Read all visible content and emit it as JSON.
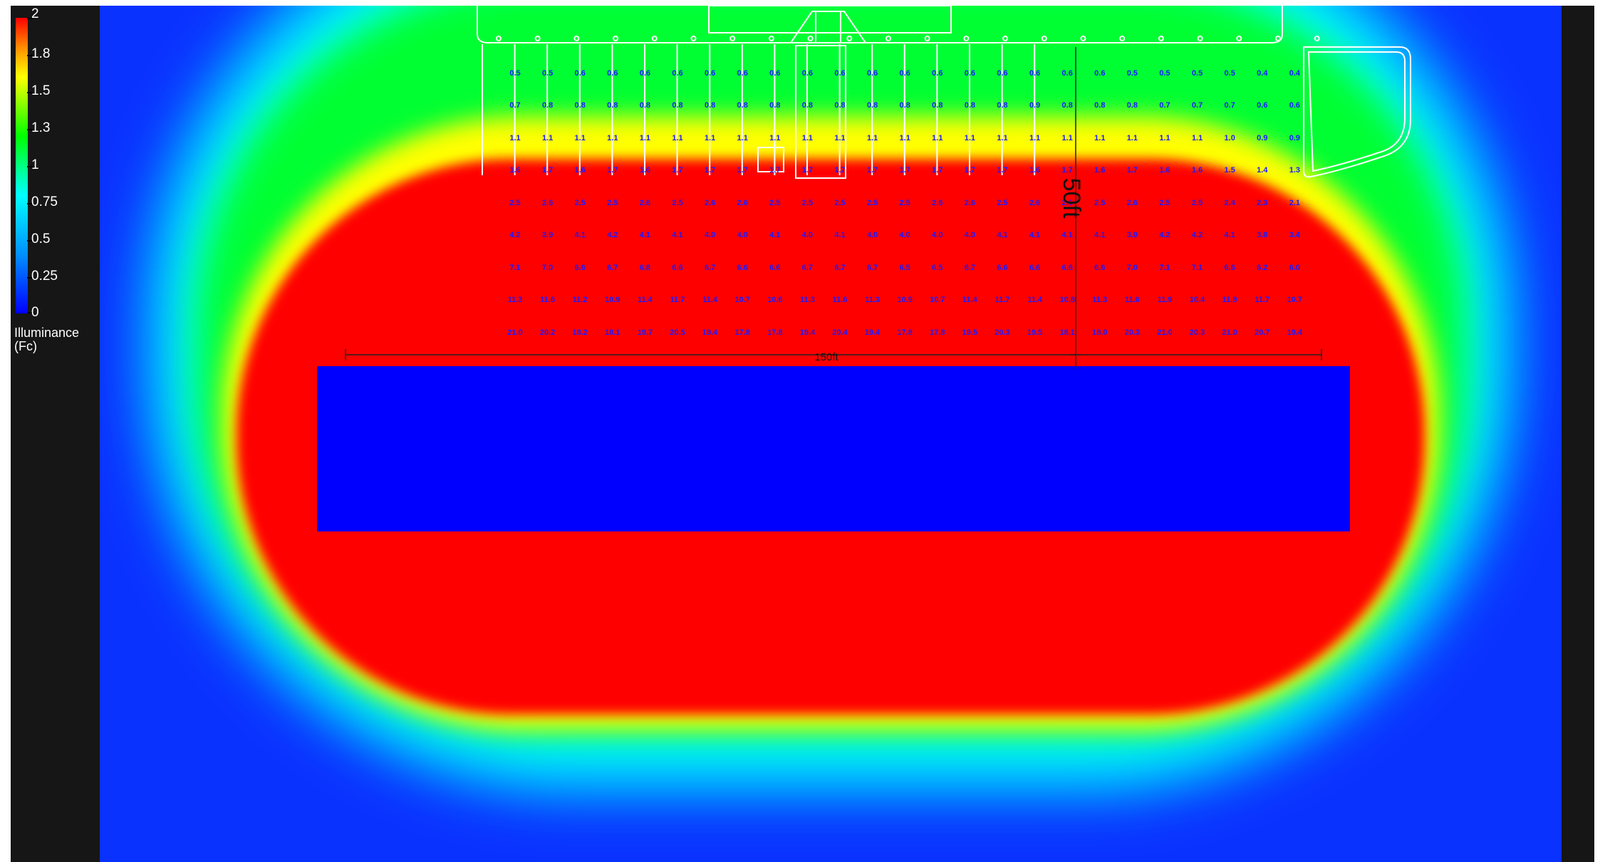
{
  "legend": {
    "ticks": [
      "2",
      "1.8",
      "1.5",
      "1.3",
      "1",
      "0.75",
      "0.5",
      "0.25",
      "0"
    ],
    "title_line1": "Illuminance",
    "title_line2": "(Fc)"
  },
  "dimensions": {
    "width_label": "150ft",
    "depth_label": "50ft"
  },
  "colors": {
    "red": "#ff0000",
    "orange": "#ff8c00",
    "yellow": "#ffff00",
    "green": "#00ff00",
    "cyan": "#00ffff",
    "blue": "#0000ff",
    "grid_values": "#1a1aff",
    "outline": "#ffffff"
  },
  "grid_values": [
    [
      "0.5",
      "0.5",
      "0.6",
      "0.6",
      "0.6",
      "0.6",
      "0.6",
      "0.6",
      "0.6",
      "0.6",
      "0.6",
      "0.6",
      "0.6",
      "0.6",
      "0.6",
      "0.6",
      "0.6",
      "0.6",
      "0.6",
      "0.5",
      "0.5",
      "0.5",
      "0.5",
      "0.4",
      "0.4"
    ],
    [
      "0.7",
      "0.8",
      "0.8",
      "0.8",
      "0.8",
      "0.8",
      "0.8",
      "0.8",
      "0.8",
      "0.8",
      "0.8",
      "0.8",
      "0.8",
      "0.8",
      "0.8",
      "0.8",
      "0.9",
      "0.8",
      "0.8",
      "0.8",
      "0.7",
      "0.7",
      "0.7",
      "0.6",
      "0.6"
    ],
    [
      "1.1",
      "1.1",
      "1.1",
      "1.1",
      "1.1",
      "1.1",
      "1.1",
      "1.1",
      "1.1",
      "1.1",
      "1.1",
      "1.1",
      "1.1",
      "1.1",
      "1.1",
      "1.1",
      "1.1",
      "1.1",
      "1.1",
      "1.1",
      "1.1",
      "1.1",
      "1.0",
      "0.9",
      "0.9"
    ],
    [
      "1.6",
      "1.7",
      "1.6",
      "1.7",
      "1.6",
      "1.7",
      "1.7",
      "1.7",
      "1.7",
      "1.7",
      "1.7",
      "1.7",
      "1.7",
      "1.7",
      "1.7",
      "1.7",
      "1.6",
      "1.7",
      "1.6",
      "1.7",
      "1.6",
      "1.6",
      "1.5",
      "1.4",
      "1.3"
    ],
    [
      "2.5",
      "2.6",
      "2.5",
      "2.5",
      "2.6",
      "2.5",
      "2.6",
      "2.6",
      "2.5",
      "2.5",
      "2.5",
      "2.5",
      "2.5",
      "2.6",
      "2.6",
      "2.5",
      "2.6",
      "2.6",
      "2.5",
      "2.6",
      "2.5",
      "2.5",
      "2.4",
      "2.3",
      "2.1"
    ],
    [
      "4.2",
      "3.9",
      "4.1",
      "4.2",
      "4.1",
      "4.1",
      "4.0",
      "4.0",
      "4.1",
      "4.0",
      "4.1",
      "4.0",
      "4.0",
      "4.0",
      "4.0",
      "4.1",
      "4.1",
      "4.1",
      "4.1",
      "3.9",
      "4.2",
      "4.2",
      "4.1",
      "3.8",
      "3.4"
    ],
    [
      "7.1",
      "7.0",
      "6.6",
      "6.7",
      "6.8",
      "6.6",
      "6.7",
      "6.6",
      "6.6",
      "6.7",
      "6.7",
      "6.7",
      "6.5",
      "6.5",
      "6.7",
      "6.6",
      "6.6",
      "6.6",
      "6.6",
      "7.0",
      "7.1",
      "7.1",
      "6.6",
      "6.2",
      "6.0"
    ],
    [
      "11.3",
      "11.6",
      "11.2",
      "10.9",
      "11.4",
      "11.7",
      "11.4",
      "10.7",
      "10.6",
      "11.3",
      "11.6",
      "11.3",
      "10.9",
      "10.7",
      "11.4",
      "11.7",
      "11.4",
      "10.8",
      "11.3",
      "11.6",
      "11.9",
      "10.4",
      "11.9",
      "11.7",
      "10.7"
    ],
    [
      "21.0",
      "20.2",
      "18.2",
      "18.1",
      "19.7",
      "20.5",
      "19.4",
      "17.8",
      "17.8",
      "19.4",
      "20.4",
      "19.4",
      "17.8",
      "17.8",
      "19.5",
      "20.3",
      "19.5",
      "18.1",
      "18.0",
      "20.3",
      "21.0",
      "20.3",
      "21.0",
      "20.7",
      "19.4"
    ]
  ]
}
